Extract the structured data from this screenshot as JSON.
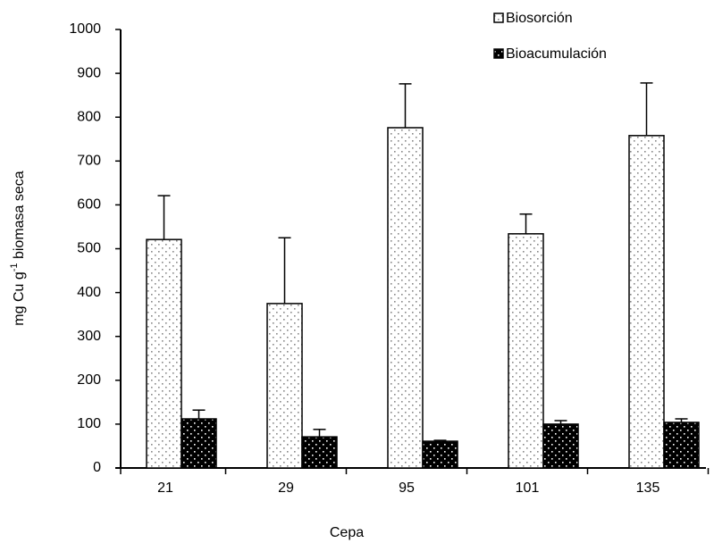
{
  "chart_data": {
    "type": "bar",
    "x_label": "Cepa",
    "y_label_parts": [
      "mg Cu g",
      "-1",
      " biomasa seca"
    ],
    "categories": [
      "21",
      "29",
      "95",
      "101",
      "135"
    ],
    "series": [
      {
        "name": "Biosorción",
        "color": "#ffffff",
        "dot_color": "#888888",
        "values": [
          521,
          375,
          776,
          534,
          758
        ],
        "errors": [
          100,
          150,
          100,
          45,
          120
        ]
      },
      {
        "name": "Bioacumulación",
        "color": "#000000",
        "dot_color": "#ffffff",
        "values": [
          112,
          71,
          61,
          100,
          104
        ],
        "errors": [
          20,
          17,
          2,
          8,
          8
        ]
      }
    ],
    "ylim": [
      0,
      1000
    ],
    "yticks": [
      0,
      100,
      200,
      300,
      400,
      500,
      600,
      700,
      800,
      900,
      1000
    ],
    "grid": false,
    "legend": "top-right"
  }
}
